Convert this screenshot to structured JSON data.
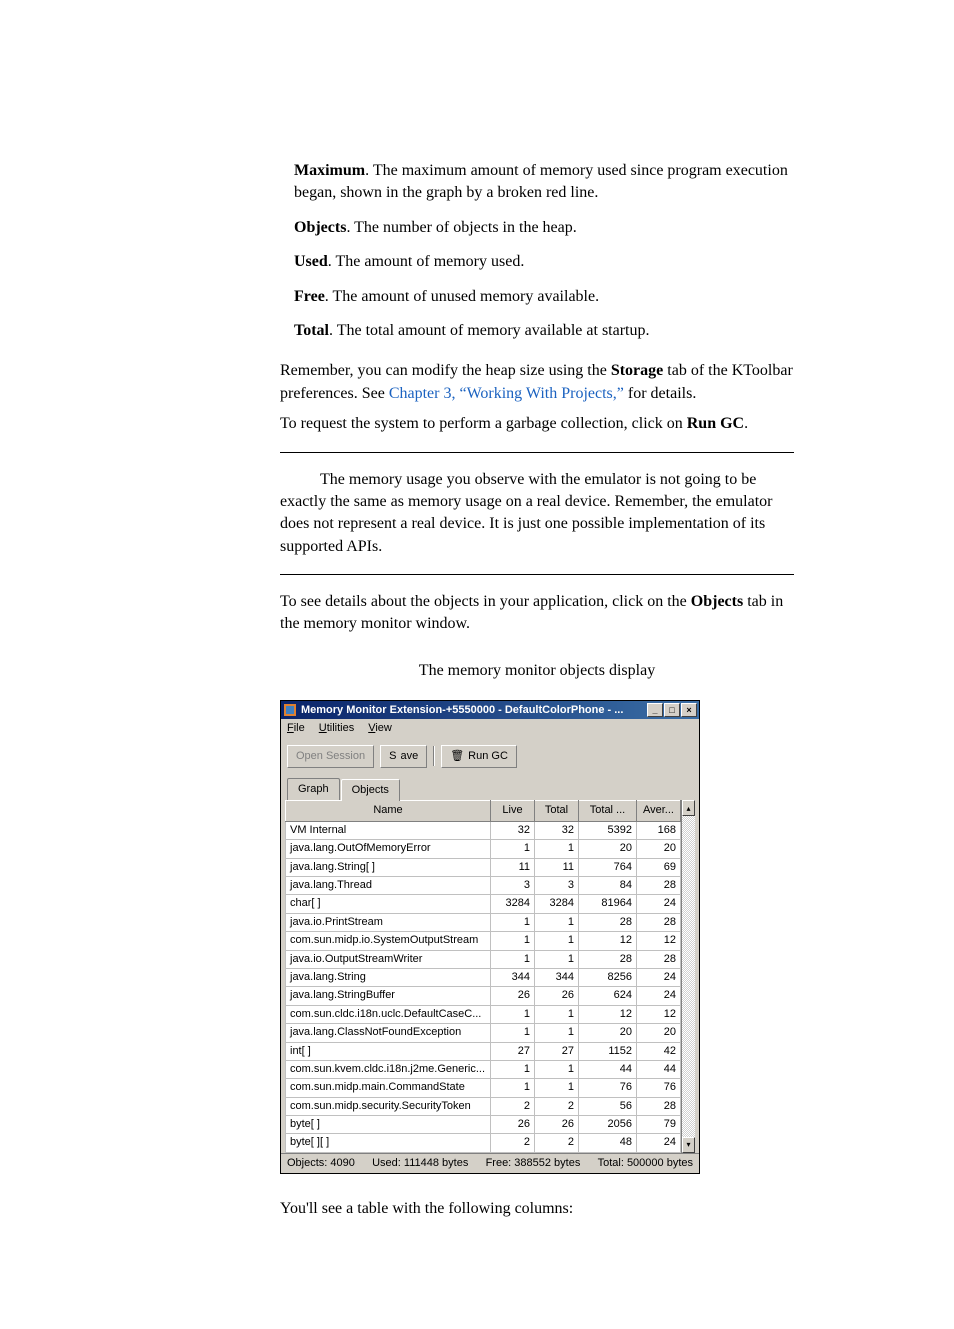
{
  "definitions": [
    {
      "term": "Maximum",
      "text": ". The maximum amount of memory used since program execution began, shown in the graph by a broken red line."
    },
    {
      "term": "Objects",
      "text": ". The number of objects in the heap."
    },
    {
      "term": "Used",
      "text": ". The amount of memory used."
    },
    {
      "term": "Free",
      "text": ". The amount of unused memory available."
    },
    {
      "term": "Total",
      "text": ". The total amount of memory available at startup."
    }
  ],
  "para1": {
    "pre": "Remember, you can modify the heap size using the ",
    "bold1": "Storage",
    "mid": " tab of the KToolbar preferences. See ",
    "link": "Chapter 3, “Working With Projects,”",
    "post": " for details."
  },
  "para2": {
    "pre": "To request the system to perform a garbage collection, click on ",
    "bold": "Run GC",
    "post": "."
  },
  "note": "The memory usage you observe with the emulator is not going to be exactly the same as memory usage on a real device. Remember, the emulator does not represent a real device. It is just one possible implementation of its supported APIs.",
  "para3": {
    "pre": "To see details about the objects in your application, click on the ",
    "bold": "Objects",
    "post": " tab in the memory monitor window."
  },
  "caption": "The memory monitor objects display",
  "window": {
    "title": "Memory Monitor Extension-+5550000 - DefaultColorPhone - ...",
    "menu": {
      "file": "File",
      "utilities": "Utilities",
      "view": "View"
    },
    "toolbar": {
      "open": "Open Session",
      "save": "Save",
      "rungc": "Run GC"
    },
    "tabs": {
      "graph": "Graph",
      "objects": "Objects"
    },
    "columns": {
      "name": "Name",
      "live": "Live",
      "total": "Total",
      "total2": "Total ...",
      "aver": "Aver..."
    },
    "rows": [
      {
        "name": "VM Internal",
        "live": 32,
        "total": 32,
        "total2": 5392,
        "aver": 168
      },
      {
        "name": "java.lang.OutOfMemoryError",
        "live": 1,
        "total": 1,
        "total2": 20,
        "aver": 20
      },
      {
        "name": "java.lang.String[ ]",
        "live": 11,
        "total": 11,
        "total2": 764,
        "aver": 69
      },
      {
        "name": "java.lang.Thread",
        "live": 3,
        "total": 3,
        "total2": 84,
        "aver": 28
      },
      {
        "name": "char[ ]",
        "live": 3284,
        "total": 3284,
        "total2": 81964,
        "aver": 24
      },
      {
        "name": "java.io.PrintStream",
        "live": 1,
        "total": 1,
        "total2": 28,
        "aver": 28
      },
      {
        "name": "com.sun.midp.io.SystemOutputStream",
        "live": 1,
        "total": 1,
        "total2": 12,
        "aver": 12
      },
      {
        "name": "java.io.OutputStreamWriter",
        "live": 1,
        "total": 1,
        "total2": 28,
        "aver": 28
      },
      {
        "name": "java.lang.String",
        "live": 344,
        "total": 344,
        "total2": 8256,
        "aver": 24
      },
      {
        "name": "java.lang.StringBuffer",
        "live": 26,
        "total": 26,
        "total2": 624,
        "aver": 24
      },
      {
        "name": "com.sun.cldc.i18n.uclc.DefaultCaseC...",
        "live": 1,
        "total": 1,
        "total2": 12,
        "aver": 12
      },
      {
        "name": "java.lang.ClassNotFoundException",
        "live": 1,
        "total": 1,
        "total2": 20,
        "aver": 20
      },
      {
        "name": "int[ ]",
        "live": 27,
        "total": 27,
        "total2": 1152,
        "aver": 42
      },
      {
        "name": "com.sun.kvem.cldc.i18n.j2me.Generic...",
        "live": 1,
        "total": 1,
        "total2": 44,
        "aver": 44
      },
      {
        "name": "com.sun.midp.main.CommandState",
        "live": 1,
        "total": 1,
        "total2": 76,
        "aver": 76
      },
      {
        "name": "com.sun.midp.security.SecurityToken",
        "live": 2,
        "total": 2,
        "total2": 56,
        "aver": 28
      },
      {
        "name": "byte[ ]",
        "live": 26,
        "total": 26,
        "total2": 2056,
        "aver": 79
      },
      {
        "name": "byte[ ][ ]",
        "live": 2,
        "total": 2,
        "total2": 48,
        "aver": 24
      }
    ],
    "status": {
      "objects": "Objects: 4090",
      "used": "Used: 111448 bytes",
      "free": "Free: 388552 bytes",
      "total": "Total: 500000 bytes"
    }
  },
  "para4": "You'll see a table with the following columns:",
  "icons": {
    "min": "_",
    "max": "□",
    "close": "×",
    "trash": "🗑",
    "up": "▴",
    "down": "▾"
  }
}
